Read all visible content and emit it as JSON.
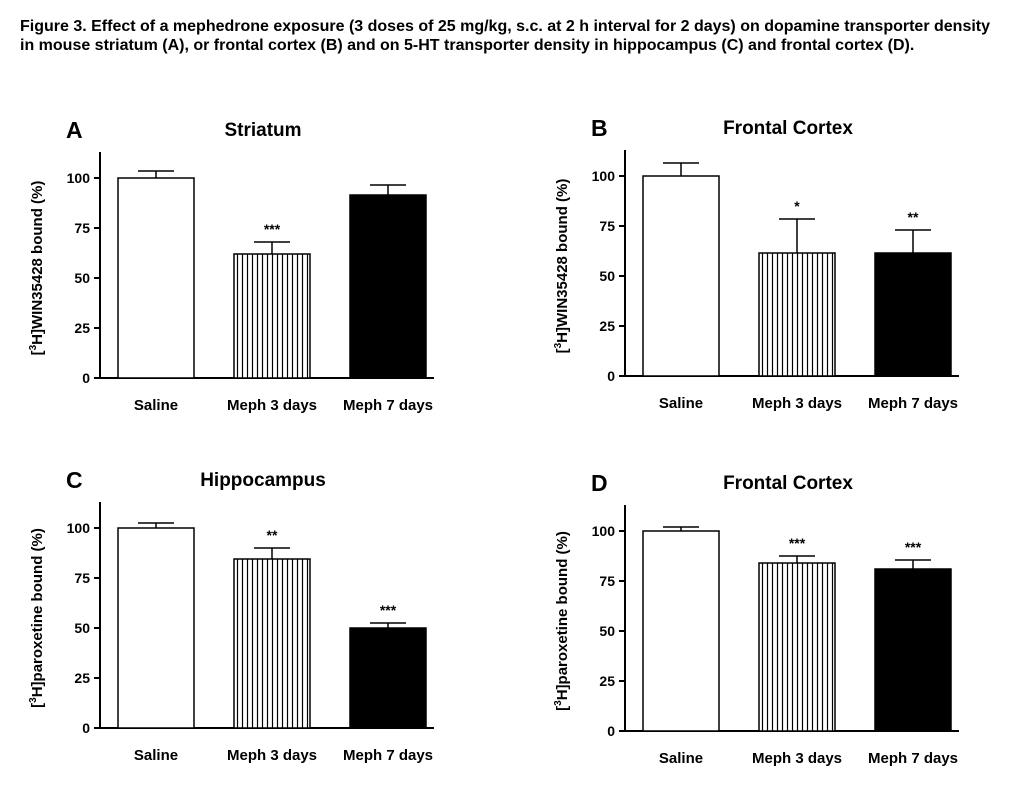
{
  "caption": "Figure 3. Effect of a mephedrone exposure (3 doses of 25 mg/kg, s.c. at 2 h interval for 2 days) on dopamine transporter density in mouse striatum (A), or frontal cortex (B) and on 5-HT transporter density in hippocampus (C) and frontal cortex (D).",
  "chart_data": [
    {
      "type": "bar",
      "panel": "A",
      "title": "Striatum",
      "ylabel": {
        "pre": "[",
        "sup": "3",
        "post": "H]WIN35428 bound (%)"
      },
      "categories": [
        "Saline",
        "Meph 3 days",
        "Meph 7 days"
      ],
      "values": [
        100,
        62,
        91.5
      ],
      "errors": [
        3.5,
        6,
        5
      ],
      "significance": [
        "",
        "***",
        ""
      ],
      "fills": [
        "white",
        "vstripes",
        "black"
      ],
      "ylim": [
        0,
        110
      ],
      "yticks": [
        0,
        25,
        50,
        75,
        100
      ]
    },
    {
      "type": "bar",
      "panel": "B",
      "title": "Frontal Cortex",
      "ylabel": {
        "pre": "[",
        "sup": "3",
        "post": "H]WIN35428 bound (%)"
      },
      "categories": [
        "Saline",
        "Meph 3 days",
        "Meph 7 days"
      ],
      "values": [
        100,
        61.5,
        61.5
      ],
      "errors": [
        6.5,
        17,
        11.5
      ],
      "significance": [
        "",
        "*",
        "**"
      ],
      "fills": [
        "white",
        "vstripes",
        "black"
      ],
      "ylim": [
        0,
        110
      ],
      "yticks": [
        0,
        25,
        50,
        75,
        100
      ]
    },
    {
      "type": "bar",
      "panel": "C",
      "title": "Hippocampus",
      "ylabel": {
        "pre": "[",
        "sup": "3",
        "post": "H]paroxetine bound (%)"
      },
      "categories": [
        "Saline",
        "Meph 3 days",
        "Meph 7 days"
      ],
      "values": [
        100,
        84.5,
        50
      ],
      "errors": [
        2.5,
        5.5,
        2.5
      ],
      "significance": [
        "",
        "**",
        "***"
      ],
      "fills": [
        "white",
        "vstripes",
        "black"
      ],
      "ylim": [
        0,
        110
      ],
      "yticks": [
        0,
        25,
        50,
        75,
        100
      ]
    },
    {
      "type": "bar",
      "panel": "D",
      "title": "Frontal Cortex",
      "ylabel": {
        "pre": "[",
        "sup": "3",
        "post": "H]paroxetine bound (%)"
      },
      "categories": [
        "Saline",
        "Meph 3 days",
        "Meph 7 days"
      ],
      "values": [
        100,
        84,
        81
      ],
      "errors": [
        2,
        3.5,
        4.5
      ],
      "significance": [
        "",
        "***",
        "***"
      ],
      "fills": [
        "white",
        "vstripes",
        "black"
      ],
      "ylim": [
        0,
        110
      ],
      "yticks": [
        0,
        25,
        50,
        75,
        100
      ]
    }
  ]
}
